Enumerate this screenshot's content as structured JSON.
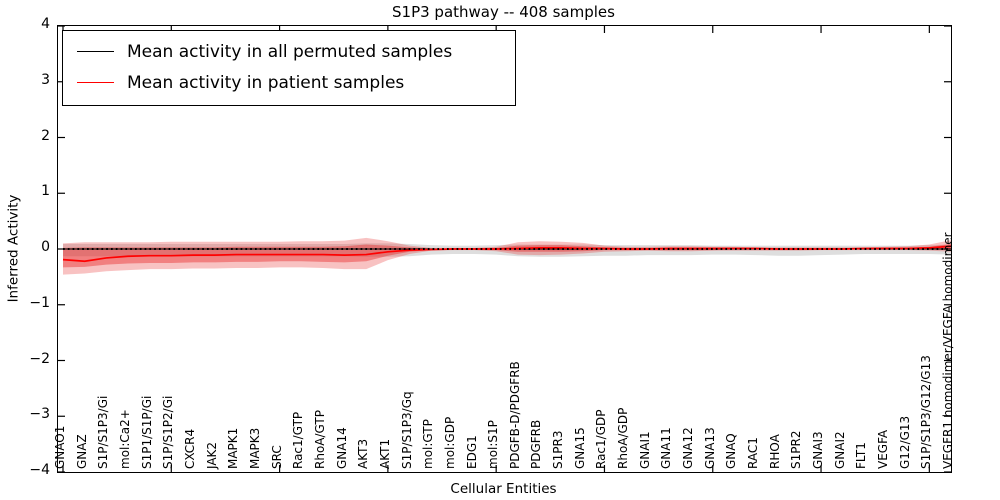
{
  "title": "S1P3 pathway -- 408 samples",
  "legend": {
    "items": [
      {
        "label": "Mean activity in all permuted samples",
        "color": "#000000"
      },
      {
        "label": "Mean activity in patient samples",
        "color": "#ff0000"
      }
    ]
  },
  "chart_data": {
    "type": "line",
    "title": "S1P3 pathway -- 408 samples",
    "xlabel": "Cellular Entities",
    "ylabel": "Inferred Activity",
    "ylim": [
      -4,
      4
    ],
    "yticks": [
      4,
      3,
      2,
      1,
      0,
      -1,
      -2,
      -3,
      -4
    ],
    "ytick_labels": [
      "4",
      "3",
      "2",
      "1",
      "0",
      "−1",
      "−2",
      "−3",
      "−4"
    ],
    "xtick_every": 5,
    "grid": false,
    "legend_position": "upper left",
    "zero_line": {
      "style": "dotted",
      "color": "#000000",
      "y": 0
    },
    "categories": [
      "GNAO1",
      "GNAZ",
      "S1P/S1P3/Gi",
      "mol:Ca2+",
      "S1P1/S1P/Gi",
      "S1P/S1P2/Gi",
      "CXCR4",
      "JAK2",
      "MAPK1",
      "MAPK3",
      "SRC",
      "Rac1/GTP",
      "RhoA/GTP",
      "GNA14",
      "AKT3",
      "AKT1",
      "S1P/S1P3/Gq",
      "mol:GTP",
      "mol:GDP",
      "EDG1",
      "mol:S1P",
      "PDGFB-D/PDGFRB",
      "PDGFRB",
      "S1PR3",
      "GNA15",
      "Rac1/GDP",
      "RhoA/GDP",
      "GNAI1",
      "GNA11",
      "GNA12",
      "GNA13",
      "GNAQ",
      "RAC1",
      "RHOA",
      "S1PR2",
      "GNAI3",
      "GNAI2",
      "FLT1",
      "VEGFA",
      "G12/G13",
      "S1P/S1P3/G12/G13",
      "VEGFR1 homodimer/VEGFA homodimer"
    ],
    "series": [
      {
        "name": "Mean activity in all permuted samples",
        "color": "#000000",
        "values": [
          0,
          0,
          0,
          0,
          0,
          0,
          0,
          0,
          0,
          0,
          0,
          0,
          0,
          0,
          0,
          0,
          0,
          0,
          0,
          0,
          0,
          0,
          0,
          0,
          0,
          0,
          0,
          0,
          0,
          0,
          0,
          0,
          0,
          0,
          0,
          0,
          0,
          0,
          0,
          0,
          0,
          0
        ]
      },
      {
        "name": "Mean activity in patient samples",
        "color": "#ff0000",
        "values": [
          -0.19,
          -0.22,
          -0.16,
          -0.13,
          -0.12,
          -0.12,
          -0.11,
          -0.11,
          -0.1,
          -0.1,
          -0.1,
          -0.1,
          -0.1,
          -0.11,
          -0.1,
          -0.05,
          -0.02,
          -0.01,
          0,
          0,
          0,
          0.01,
          0.02,
          0.02,
          0.01,
          0.01,
          0,
          0,
          0.01,
          0.01,
          0.01,
          0.01,
          0.01,
          0,
          0,
          0,
          0,
          0.01,
          0.01,
          0.01,
          0.02,
          0.05
        ]
      }
    ],
    "bands": [
      {
        "name": "permuted-samples-spread",
        "fill": "rgba(0,0,0,0.13)",
        "upper": [
          0.09,
          0.09,
          0.09,
          0.09,
          0.09,
          0.09,
          0.09,
          0.09,
          0.09,
          0.09,
          0.09,
          0.09,
          0.09,
          0.09,
          0.1,
          0.1,
          0.09,
          0.07,
          0.06,
          0.06,
          0.07,
          0.08,
          0.08,
          0.08,
          0.08,
          0.07,
          0.07,
          0.07,
          0.07,
          0.07,
          0.06,
          0.06,
          0.06,
          0.06,
          0.06,
          0.06,
          0.06,
          0.06,
          0.06,
          0.06,
          0.07,
          0.08
        ],
        "lower": [
          -0.13,
          -0.13,
          -0.13,
          -0.13,
          -0.13,
          -0.13,
          -0.13,
          -0.13,
          -0.13,
          -0.13,
          -0.13,
          -0.13,
          -0.13,
          -0.13,
          -0.14,
          -0.14,
          -0.13,
          -0.1,
          -0.09,
          -0.09,
          -0.1,
          -0.13,
          -0.14,
          -0.14,
          -0.13,
          -0.12,
          -0.12,
          -0.11,
          -0.11,
          -0.11,
          -0.1,
          -0.1,
          -0.11,
          -0.12,
          -0.12,
          -0.11,
          -0.1,
          -0.09,
          -0.09,
          -0.09,
          -0.09,
          -0.1
        ]
      },
      {
        "name": "patient-samples-outer-spread",
        "fill": "rgba(230,30,30,0.27)",
        "upper": [
          0.1,
          0.12,
          0.12,
          0.12,
          0.12,
          0.13,
          0.13,
          0.13,
          0.13,
          0.13,
          0.13,
          0.14,
          0.14,
          0.15,
          0.2,
          0.14,
          0.06,
          0.02,
          0.02,
          0.02,
          0.04,
          0.12,
          0.14,
          0.13,
          0.11,
          0.06,
          0.04,
          0.04,
          0.05,
          0.05,
          0.04,
          0.04,
          0.03,
          0.03,
          0.03,
          0.03,
          0.03,
          0.03,
          0.04,
          0.05,
          0.08,
          0.16
        ],
        "lower": [
          -0.46,
          -0.44,
          -0.4,
          -0.38,
          -0.36,
          -0.36,
          -0.35,
          -0.35,
          -0.34,
          -0.34,
          -0.33,
          -0.33,
          -0.34,
          -0.36,
          -0.36,
          -0.2,
          -0.09,
          -0.03,
          -0.02,
          -0.02,
          -0.04,
          -0.1,
          -0.11,
          -0.1,
          -0.08,
          -0.05,
          -0.04,
          -0.03,
          -0.04,
          -0.04,
          -0.03,
          -0.03,
          -0.03,
          -0.03,
          -0.03,
          -0.02,
          -0.02,
          -0.02,
          -0.02,
          -0.02,
          -0.03,
          -0.05
        ]
      },
      {
        "name": "patient-samples-inner-spread",
        "fill": "rgba(230,30,30,0.40)",
        "upper": [
          0.02,
          0.03,
          0.03,
          0.03,
          0.03,
          0.03,
          0.03,
          0.03,
          0.04,
          0.04,
          0.04,
          0.04,
          0.04,
          0.05,
          0.08,
          0.06,
          0.03,
          0.01,
          0.01,
          0.01,
          0.02,
          0.06,
          0.07,
          0.07,
          0.05,
          0.03,
          0.02,
          0.02,
          0.02,
          0.02,
          0.02,
          0.02,
          0.02,
          0.01,
          0.01,
          0.01,
          0.01,
          0.01,
          0.02,
          0.02,
          0.04,
          0.09
        ],
        "lower": [
          -0.33,
          -0.32,
          -0.28,
          -0.26,
          -0.25,
          -0.25,
          -0.24,
          -0.24,
          -0.23,
          -0.23,
          -0.22,
          -0.22,
          -0.23,
          -0.24,
          -0.22,
          -0.12,
          -0.05,
          -0.02,
          -0.01,
          -0.01,
          -0.02,
          -0.05,
          -0.05,
          -0.05,
          -0.04,
          -0.02,
          -0.02,
          -0.02,
          -0.02,
          -0.02,
          -0.02,
          -0.01,
          -0.01,
          -0.01,
          -0.01,
          -0.01,
          -0.01,
          -0.01,
          -0.01,
          -0.01,
          -0.01,
          -0.02
        ]
      }
    ]
  }
}
